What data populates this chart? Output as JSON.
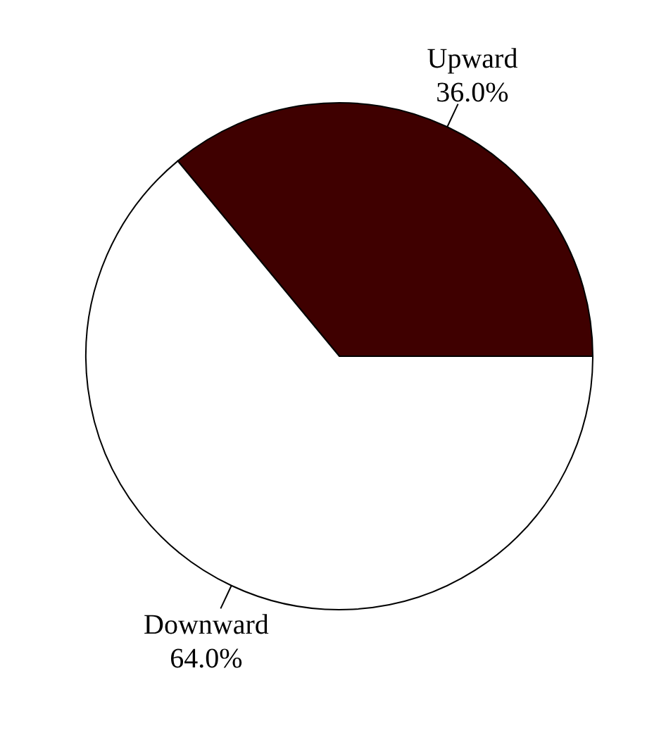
{
  "chart_data": {
    "type": "pie",
    "categories": [
      "Upward",
      "Downward"
    ],
    "values": [
      36.0,
      64.0
    ],
    "colors": [
      "#3f0000",
      "#ffffff"
    ],
    "value_labels": [
      "36.0%",
      "64.0%"
    ]
  }
}
